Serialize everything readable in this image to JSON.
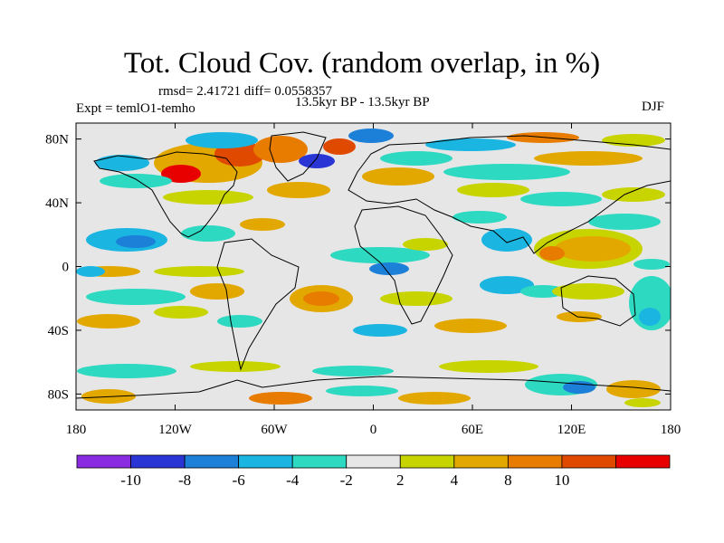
{
  "title": "Tot. Cloud Cov. (random overlap, in %)",
  "stats": "rmsd= 2.41721 diff= 0.0558357",
  "experiment": "Expt = temlO1-temho",
  "period": "13.5kyr BP - 13.5kyr BP",
  "season": "DJF",
  "map": {
    "lon_ticks": [
      "180",
      "120W",
      "60W",
      "0",
      "60E",
      "120E",
      "180"
    ],
    "lat_ticks": [
      "80N",
      "40N",
      "0",
      "40S",
      "80S"
    ],
    "background_color": "#e6e6e6",
    "coastline_color": "#000000"
  },
  "colorbar": {
    "labels": [
      "-10",
      "-8",
      "-6",
      "-4",
      "-2",
      "2",
      "4",
      "8",
      "10"
    ],
    "colors": [
      "#8a2be2",
      "#2a35d6",
      "#1c7fd8",
      "#1ab5e0",
      "#2ed9c2",
      "#e6e6e6",
      "#c7d400",
      "#e3a800",
      "#e77c00",
      "#e04a00",
      "#e80000"
    ]
  }
}
